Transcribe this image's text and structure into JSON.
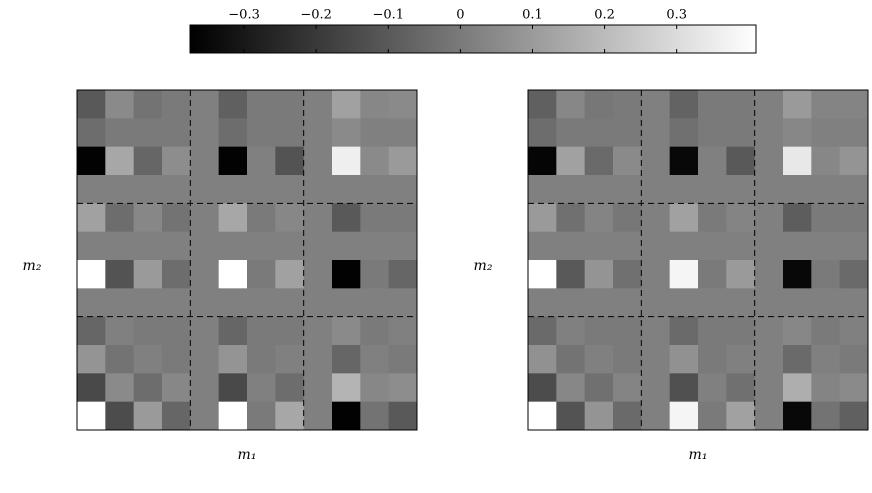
{
  "chart_data": {
    "type": "heatmap",
    "colormap": "gray",
    "colorbar": {
      "clim": [
        -0.375,
        0.41
      ],
      "ticks": [
        {
          "value": -0.3,
          "label": "−0.3"
        },
        {
          "value": -0.2,
          "label": "−0.2"
        },
        {
          "value": -0.1,
          "label": "−0.1"
        },
        0,
        0.1,
        0.2,
        0.3
      ]
    },
    "panels": [
      {
        "xlabel": "m₁",
        "ylabel": "m₂",
        "values": [
          [
            -0.1,
            0.05,
            -0.02,
            0.0,
            0.02,
            -0.08,
            0.0,
            0.0,
            0.02,
            0.12,
            0.04,
            0.05
          ],
          [
            -0.04,
            0.0,
            0.0,
            0.0,
            0.02,
            -0.04,
            0.0,
            0.0,
            0.02,
            0.05,
            0.02,
            0.02
          ],
          [
            -0.37,
            0.14,
            -0.06,
            0.06,
            0.02,
            -0.37,
            0.02,
            -0.12,
            0.02,
            0.36,
            0.05,
            0.1
          ],
          [
            0.02,
            0.02,
            0.02,
            0.02,
            0.02,
            0.02,
            0.02,
            0.02,
            0.02,
            0.02,
            0.02,
            0.02
          ],
          [
            0.12,
            -0.04,
            0.04,
            -0.02,
            0.02,
            0.14,
            0.0,
            0.04,
            0.02,
            -0.1,
            0.0,
            0.0
          ],
          [
            0.02,
            0.02,
            0.02,
            0.02,
            0.02,
            0.02,
            0.02,
            0.02,
            0.02,
            0.02,
            0.02,
            0.02
          ],
          [
            0.41,
            -0.12,
            0.1,
            -0.04,
            0.02,
            0.41,
            0.0,
            0.12,
            0.02,
            -0.37,
            0.0,
            -0.06
          ],
          [
            0.02,
            0.02,
            0.02,
            0.02,
            0.02,
            0.02,
            0.02,
            0.02,
            0.02,
            0.02,
            0.02,
            0.02
          ],
          [
            -0.06,
            0.02,
            0.0,
            0.0,
            0.02,
            -0.06,
            0.0,
            0.0,
            0.02,
            0.05,
            0.0,
            0.02
          ],
          [
            0.08,
            -0.02,
            0.02,
            0.0,
            0.02,
            0.08,
            0.0,
            0.02,
            0.02,
            -0.06,
            0.02,
            0.0
          ],
          [
            -0.15,
            0.05,
            -0.04,
            0.04,
            0.02,
            -0.15,
            0.02,
            -0.04,
            0.02,
            0.18,
            0.04,
            0.06
          ],
          [
            0.41,
            -0.14,
            0.1,
            -0.06,
            0.02,
            0.41,
            0.0,
            0.14,
            0.02,
            -0.37,
            -0.02,
            -0.1
          ]
        ]
      },
      {
        "xlabel": "m₁",
        "ylabel": "m₂",
        "values": [
          [
            -0.08,
            0.04,
            -0.01,
            0.0,
            0.02,
            -0.07,
            0.0,
            0.0,
            0.02,
            0.1,
            0.03,
            0.03
          ],
          [
            -0.04,
            0.0,
            0.0,
            0.0,
            0.02,
            -0.03,
            0.0,
            0.0,
            0.02,
            0.04,
            0.02,
            0.02
          ],
          [
            -0.36,
            0.12,
            -0.05,
            0.05,
            0.02,
            -0.35,
            0.02,
            -0.1,
            0.02,
            0.34,
            0.04,
            0.08
          ],
          [
            0.02,
            0.02,
            0.02,
            0.02,
            0.02,
            0.02,
            0.02,
            0.02,
            0.02,
            0.02,
            0.02,
            0.02
          ],
          [
            0.1,
            -0.03,
            0.03,
            -0.01,
            0.02,
            0.12,
            0.0,
            0.03,
            0.02,
            -0.09,
            0.0,
            0.0
          ],
          [
            0.02,
            0.02,
            0.02,
            0.02,
            0.02,
            0.02,
            0.02,
            0.02,
            0.02,
            0.02,
            0.02,
            0.02
          ],
          [
            0.41,
            -0.1,
            0.08,
            -0.03,
            0.02,
            0.38,
            0.0,
            0.1,
            0.02,
            -0.35,
            0.0,
            -0.05
          ],
          [
            0.02,
            0.02,
            0.02,
            0.02,
            0.02,
            0.02,
            0.02,
            0.02,
            0.02,
            0.02,
            0.02,
            0.02
          ],
          [
            -0.05,
            0.02,
            0.0,
            0.0,
            0.02,
            -0.05,
            0.0,
            0.0,
            0.02,
            0.04,
            0.0,
            0.02
          ],
          [
            0.07,
            -0.02,
            0.02,
            0.0,
            0.02,
            0.07,
            0.0,
            0.02,
            0.02,
            -0.05,
            0.02,
            0.0
          ],
          [
            -0.14,
            0.04,
            -0.03,
            0.03,
            0.02,
            -0.13,
            0.02,
            -0.03,
            0.02,
            0.16,
            0.03,
            0.05
          ],
          [
            0.41,
            -0.12,
            0.08,
            -0.05,
            0.02,
            0.38,
            0.0,
            0.12,
            0.02,
            -0.35,
            -0.02,
            -0.08
          ]
        ]
      }
    ]
  }
}
